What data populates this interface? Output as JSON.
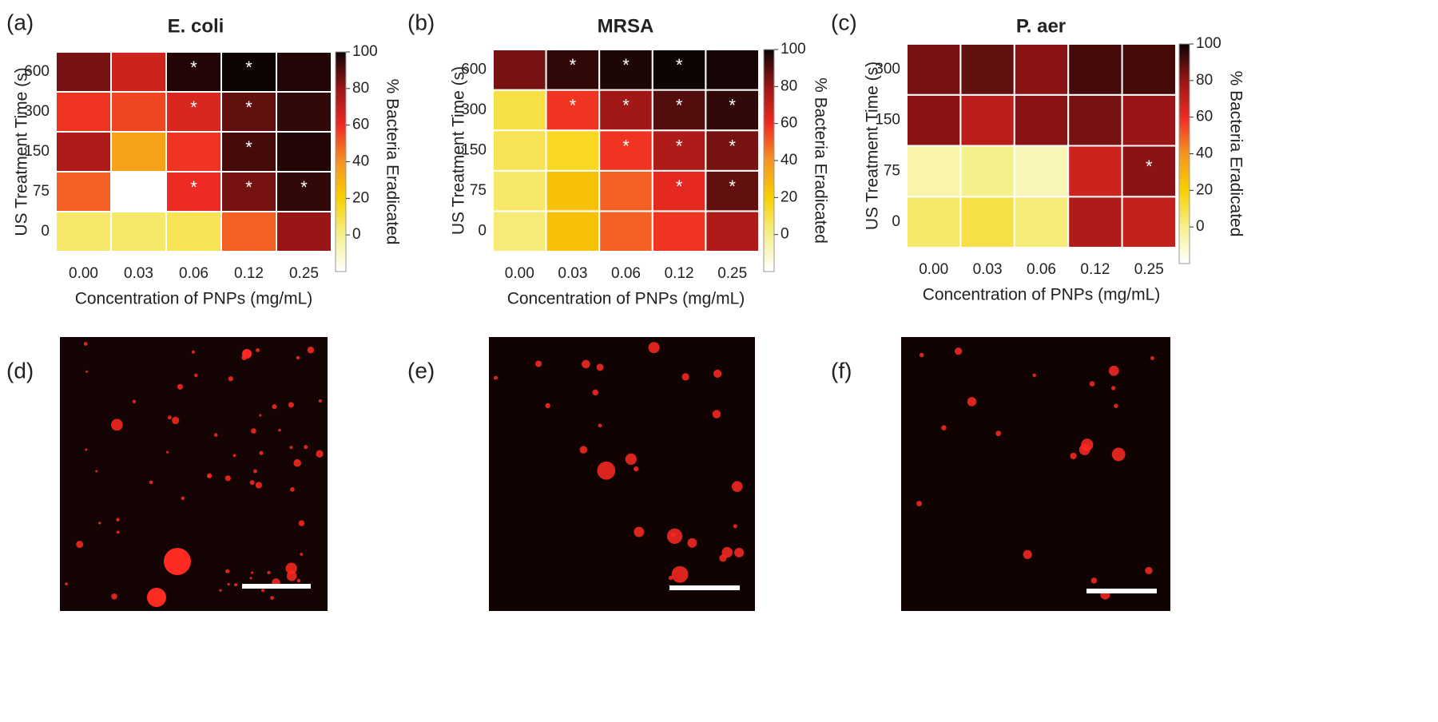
{
  "chart_data": [
    {
      "type": "heatmap",
      "panel": "(a)",
      "title": "E. coli",
      "x_label": "Concentration of PNPs (mg/mL)",
      "y_label": "US Treatment Time (s)",
      "categories": [
        "0.00",
        "0.03",
        "0.06",
        "0.12",
        "0.25"
      ],
      "y_categories": [
        "0",
        "75",
        "150",
        "300",
        "600"
      ],
      "values": [
        [
          5,
          5,
          8,
          50,
          80
        ],
        [
          50,
          -20,
          60,
          85,
          95
        ],
        [
          75,
          35,
          58,
          92,
          97
        ],
        [
          58,
          55,
          65,
          88,
          95
        ],
        [
          85,
          68,
          97,
          100,
          97
        ]
      ],
      "annotations": [
        [
          null,
          null,
          null,
          null,
          null
        ],
        [
          null,
          null,
          "*",
          "*",
          "*"
        ],
        [
          null,
          null,
          null,
          "*",
          null
        ],
        [
          null,
          null,
          "*",
          "*",
          null
        ],
        [
          null,
          null,
          "*",
          "*",
          null
        ]
      ],
      "colorbar_label": "% Bacteria Eradicated",
      "zlim": [
        -20,
        100
      ],
      "zticks": [
        0,
        20,
        40,
        60,
        80,
        100
      ],
      "colormap": [
        "#ffffff",
        "#f6f08c",
        "#f8d000",
        "#f59422",
        "#ee2b22",
        "#981616",
        "#0e0404"
      ]
    },
    {
      "type": "heatmap",
      "panel": "(b)",
      "title": "MRSA",
      "x_label": "Concentration of PNPs (mg/mL)",
      "y_label": "US Treatment Time (s)",
      "categories": [
        "0.00",
        "0.03",
        "0.06",
        "0.12",
        "0.25"
      ],
      "y_categories": [
        "0",
        "75",
        "150",
        "300",
        "600"
      ],
      "values": [
        [
          3,
          25,
          50,
          58,
          75
        ],
        [
          5,
          25,
          50,
          62,
          88
        ],
        [
          8,
          15,
          58,
          75,
          85
        ],
        [
          10,
          58,
          78,
          90,
          95
        ],
        [
          85,
          95,
          98,
          100,
          99
        ]
      ],
      "annotations": [
        [
          null,
          null,
          null,
          null,
          null
        ],
        [
          null,
          null,
          null,
          "*",
          "*"
        ],
        [
          null,
          null,
          "*",
          "*",
          "*"
        ],
        [
          null,
          "*",
          "*",
          "*",
          "*"
        ],
        [
          null,
          "*",
          "*",
          "*",
          null
        ]
      ],
      "colorbar_label": "% Bacteria Eradicated",
      "zlim": [
        -20,
        100
      ],
      "zticks": [
        0,
        20,
        40,
        60,
        80,
        100
      ],
      "colormap": [
        "#ffffff",
        "#f6f08c",
        "#f8d000",
        "#f59422",
        "#ee2b22",
        "#981616",
        "#0e0404"
      ]
    },
    {
      "type": "heatmap",
      "panel": "(c)",
      "title": "P. aer",
      "x_label": "Concentration of PNPs (mg/mL)",
      "y_label": "US Treatment Time (s)",
      "categories": [
        "0.00",
        "0.03",
        "0.06",
        "0.12",
        "0.25"
      ],
      "y_categories": [
        "0",
        "75",
        "150",
        "300"
      ],
      "values": [
        [
          5,
          10,
          3,
          75,
          70
        ],
        [
          -5,
          0,
          -8,
          68,
          82
        ],
        [
          82,
          72,
          82,
          85,
          80
        ],
        [
          85,
          88,
          82,
          92,
          92
        ]
      ],
      "annotations": [
        [
          null,
          null,
          null,
          null,
          null
        ],
        [
          null,
          null,
          null,
          null,
          "*"
        ],
        [
          null,
          null,
          null,
          null,
          null
        ],
        [
          null,
          null,
          null,
          null,
          null
        ]
      ],
      "colorbar_label": "% Bacteria Eradicated",
      "zlim": [
        -20,
        100
      ],
      "zticks": [
        0,
        20,
        40,
        60,
        80,
        100
      ],
      "colormap": [
        "#ffffff",
        "#f6f08c",
        "#f8d000",
        "#f59422",
        "#ee2b22",
        "#981616",
        "#0e0404"
      ]
    }
  ],
  "images": [
    {
      "label": "(d)"
    },
    {
      "label": "(e)"
    },
    {
      "label": "(f)"
    }
  ]
}
